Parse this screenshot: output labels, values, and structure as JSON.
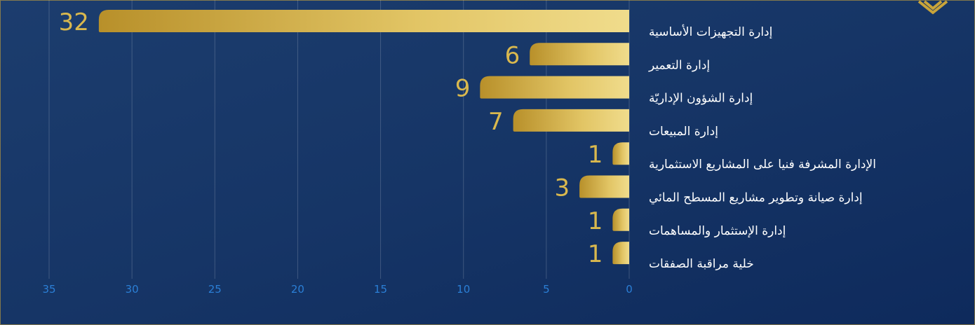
{
  "chart_data": {
    "type": "bar",
    "orientation": "horizontal",
    "reversed_x": true,
    "categories": [
      "إدارة التجهيزات الأساسية",
      "إدارة التعمير",
      "إدارة الشؤون الإداريّة",
      "إدارة المبيعات",
      "الإدارة المشرفة فنيا على المشاريع الاستثمارية",
      "إدارة صيانة وتطوير مشاريع المسطح المائي",
      "إدارة الإستثمار والمساهمات",
      "خلية مراقبة الصفقات"
    ],
    "values": [
      32,
      6,
      9,
      7,
      1,
      3,
      1,
      1
    ],
    "color": "#c9a43a",
    "xlim": [
      0,
      35
    ],
    "xticks": [
      0,
      5,
      10,
      15,
      20,
      25,
      30,
      35
    ],
    "grid": true
  }
}
